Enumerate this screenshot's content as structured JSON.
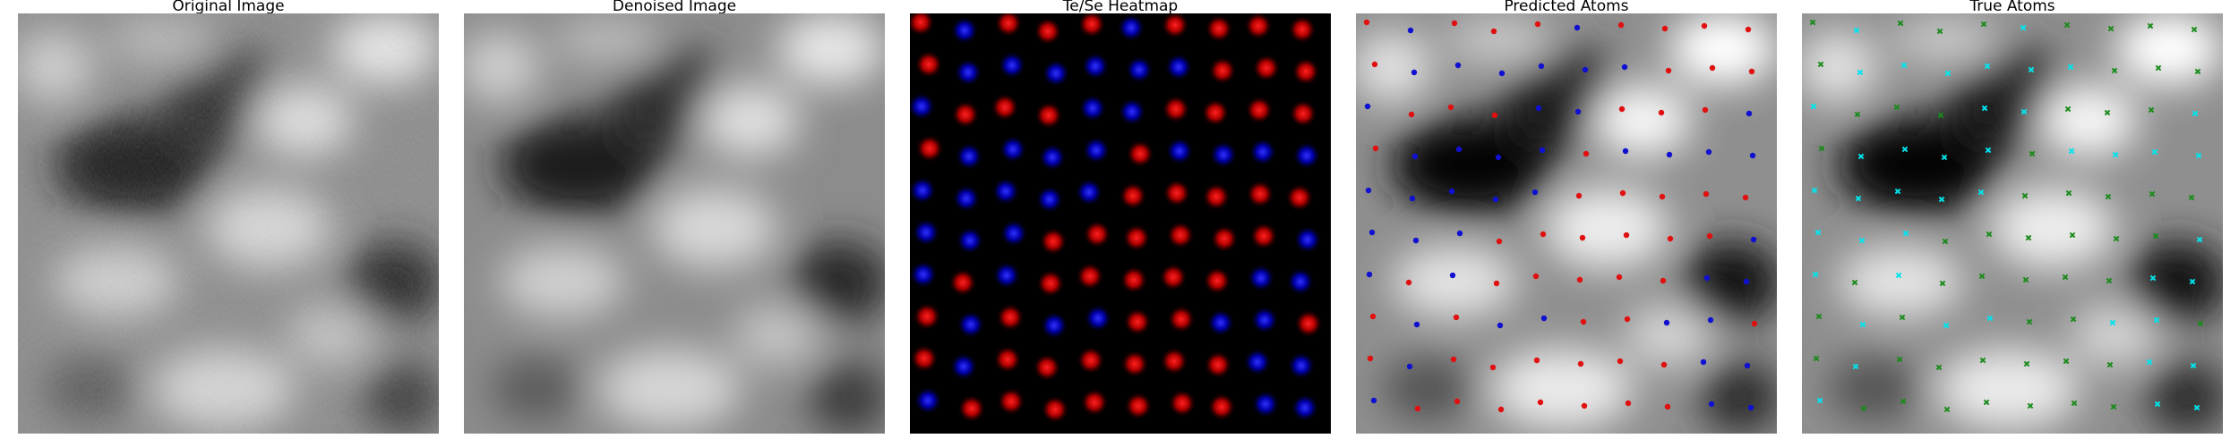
{
  "panels": [
    {
      "title": "Original Image"
    },
    {
      "title": "Denoised Image"
    },
    {
      "title": "Te/Se Heatmap"
    },
    {
      "title": "Predicted Atoms"
    },
    {
      "title": "True Atoms"
    }
  ],
  "colors": {
    "te": "#e01010",
    "se": "#1010d0",
    "true_primary": "#00e5ee",
    "true_secondary": "#1a8a1a",
    "heatmap_bg": "#000000"
  },
  "atoms": {
    "grid": {
      "columns": 10,
      "rows": 10
    },
    "heatmap_labels": [
      "RBRRRBRRRR",
      "RBBBBBBRRR",
      "BRRRBBRRRR",
      "RBBBBRBBBB",
      "BBBBBRRRRR",
      "BBBRRRRRRB",
      "BRBRRRRRBB",
      "RBRBBRRBBR",
      "RBRRRRRRBB",
      "BRRRRRRRBB"
    ],
    "predicted_labels": [
      "RBRRRBRRRR",
      "RBBBBBBRRR",
      "BRRRBBRRRB",
      "RBBBBRBBBB",
      "BBBBBRRRRR",
      "BBBRRRRRRB",
      "BRBRRRRRBB",
      "RBRBBRRBBR",
      "RBRRRRRRBB",
      "BRRRRRRRBB"
    ],
    "true_labels": [
      "GCGGGCGGGG",
      "GCCCCCCGGG",
      "CGGGCCGGGC",
      "GCCCCGCCCC",
      "CCCCCGGGGG",
      "CCCGGGGGGC",
      "CGCGGGGGCC",
      "GCGCCGGCCG",
      "GCGGGGGGCC",
      "CGGGGGGGCC"
    ]
  }
}
